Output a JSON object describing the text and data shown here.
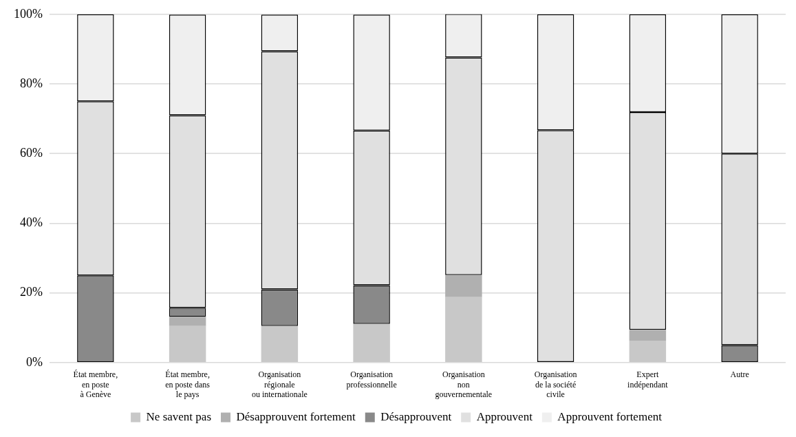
{
  "chart_data": {
    "type": "bar",
    "stacked": true,
    "categories": [
      "État membre,\nen poste\nà Genève",
      "État membre,\nen poste dans\nle pays",
      "Organisation\nrégionale\nou internationale",
      "Organisation\nprofessionnelle",
      "Organisation\nnon\ngouvernementale",
      "Organisation\nde la société\ncivile",
      "Expert\nindépendant",
      "Autre"
    ],
    "series": [
      {
        "name": "Ne savent pas",
        "color": "#c8c8c8",
        "values": [
          0,
          10.5,
          10.5,
          11.1,
          18.8,
          0,
          6.3,
          0
        ]
      },
      {
        "name": "Désapprouvent fortement",
        "color": "#b0b0b0",
        "values": [
          0,
          2.6,
          0,
          0,
          6.3,
          0,
          3.1,
          0
        ]
      },
      {
        "name": "Désapprouvent",
        "color": "#898989",
        "values": [
          25,
          2.6,
          10.5,
          11.1,
          0,
          0,
          0,
          5
        ]
      },
      {
        "name": "Approuvent",
        "color": "#e0e0e0",
        "values": [
          50,
          55.3,
          68.4,
          44.4,
          62.5,
          66.7,
          62.5,
          55
        ]
      },
      {
        "name": "Approuvent fortement",
        "color": "#efefef",
        "values": [
          25,
          28.9,
          10.5,
          33.3,
          12.5,
          33.3,
          28.1,
          40
        ]
      }
    ],
    "ylim": [
      0,
      100
    ],
    "yticks": [
      {
        "value": 0,
        "label": "0%"
      },
      {
        "value": 20,
        "label": "20%"
      },
      {
        "value": 40,
        "label": "40%"
      },
      {
        "value": 60,
        "label": "60%"
      },
      {
        "value": 80,
        "label": "80%"
      },
      {
        "value": 100,
        "label": "100%"
      }
    ],
    "grid": "y",
    "legend": "bottom"
  }
}
